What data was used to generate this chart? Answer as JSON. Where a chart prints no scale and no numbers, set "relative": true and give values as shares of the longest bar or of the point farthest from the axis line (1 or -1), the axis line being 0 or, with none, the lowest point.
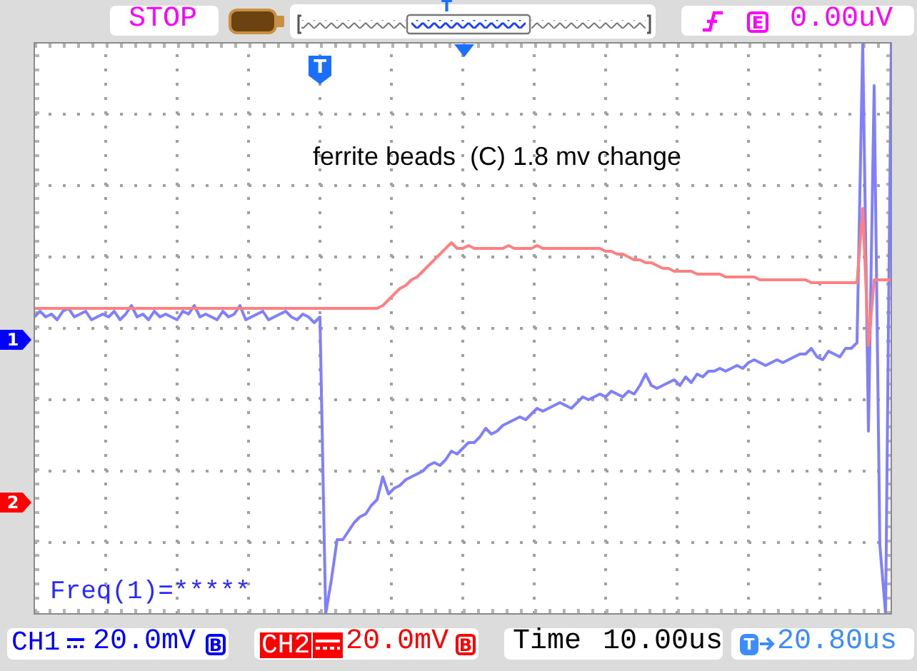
{
  "chart_data": {
    "type": "line",
    "title": "ferrite beads  (C) 1.8 mv change",
    "relative": true,
    "grid": true,
    "categories": [
      null,
      null,
      null,
      null,
      null,
      null,
      null,
      null,
      null,
      null,
      null,
      null,
      null,
      null,
      null,
      null,
      null,
      null,
      null,
      null,
      null,
      null,
      null,
      null,
      null,
      null,
      null,
      null,
      null,
      null,
      null,
      null,
      null,
      null,
      null,
      null,
      null,
      null,
      null,
      null,
      null,
      null,
      null,
      null,
      null,
      null,
      null,
      null,
      null,
      null,
      null,
      null,
      null,
      null,
      null,
      null,
      null,
      null,
      null,
      null,
      null,
      null,
      null,
      null,
      null,
      null,
      null,
      null,
      null,
      null,
      null,
      null,
      null,
      null,
      null,
      null,
      null,
      null,
      null,
      null,
      null,
      null,
      null,
      null,
      null,
      null,
      null,
      null,
      null,
      null,
      null,
      null,
      null,
      null,
      null,
      null,
      null,
      null,
      null,
      null,
      null,
      null,
      null,
      null,
      null,
      null,
      null,
      null,
      null,
      null,
      null,
      null,
      null,
      null,
      null,
      null,
      null,
      null,
      null,
      null,
      null,
      null,
      null,
      null,
      null,
      null,
      null,
      null,
      null,
      null,
      null,
      null,
      null,
      null,
      null,
      null,
      null,
      null,
      null,
      null,
      null,
      null,
      null,
      null,
      null,
      null,
      null,
      null,
      null,
      null,
      null
    ],
    "series": [
      {
        "color": "#8080ff",
        "values": [
          0.52,
          0.53,
          0.52,
          0.525,
          0.515,
          0.53,
          0.535,
          0.52,
          0.525,
          0.53,
          0.515,
          0.52,
          0.525,
          0.52,
          0.53,
          0.515,
          0.525,
          0.54,
          0.52,
          0.525,
          0.515,
          0.53,
          0.52,
          0.525,
          0.52,
          0.515,
          0.53,
          0.525,
          0.54,
          0.52,
          0.525,
          0.52,
          0.515,
          0.53,
          0.52,
          0.525,
          0.54,
          0.515,
          0.52,
          0.525,
          0.53,
          0.515,
          0.52,
          0.525,
          0.53,
          0.52,
          0.515,
          0.525,
          0.52,
          0.51,
          0.52,
          0.0,
          0.06,
          0.13,
          0.13,
          0.145,
          0.16,
          0.17,
          0.175,
          0.19,
          0.2,
          0.24,
          0.21,
          0.22,
          0.225,
          0.235,
          0.24,
          0.245,
          0.25,
          0.26,
          0.265,
          0.26,
          0.27,
          0.285,
          0.28,
          0.29,
          0.3,
          0.3,
          0.31,
          0.325,
          0.315,
          0.32,
          0.33,
          0.335,
          0.34,
          0.345,
          0.34,
          0.35,
          0.36,
          0.355,
          0.36,
          0.365,
          0.37,
          0.365,
          0.36,
          0.37,
          0.38,
          0.375,
          0.38,
          0.385,
          0.38,
          0.39,
          0.385,
          0.38,
          0.39,
          0.385,
          0.4,
          0.42,
          0.4,
          0.395,
          0.4,
          0.405,
          0.41,
          0.4,
          0.415,
          0.405,
          0.42,
          0.415,
          0.425,
          0.425,
          0.43,
          0.425,
          0.43,
          0.435,
          0.43,
          0.44,
          0.445,
          0.44,
          0.435,
          0.44,
          0.445,
          0.44,
          0.445,
          0.45,
          0.455,
          0.455,
          0.465,
          0.45,
          0.445,
          0.46,
          0.455,
          0.45,
          0.465,
          0.465,
          0.475,
          1.0,
          0.32,
          0.925,
          0.12,
          0.0,
          1.0
        ]
      },
      {
        "color": "#ff8080",
        "values": [
          0.535,
          0.535,
          0.535,
          0.535,
          0.535,
          0.535,
          0.535,
          0.535,
          0.535,
          0.535,
          0.535,
          0.535,
          0.535,
          0.535,
          0.535,
          0.535,
          0.535,
          0.535,
          0.535,
          0.535,
          0.535,
          0.535,
          0.535,
          0.535,
          0.535,
          0.535,
          0.535,
          0.535,
          0.535,
          0.535,
          0.535,
          0.535,
          0.535,
          0.535,
          0.535,
          0.535,
          0.535,
          0.535,
          0.535,
          0.535,
          0.535,
          0.535,
          0.535,
          0.535,
          0.535,
          0.535,
          0.535,
          0.535,
          0.535,
          0.535,
          0.535,
          0.535,
          0.535,
          0.535,
          0.535,
          0.535,
          0.535,
          0.535,
          0.535,
          0.535,
          0.535,
          0.54,
          0.55,
          0.56,
          0.57,
          0.575,
          0.585,
          0.59,
          0.6,
          0.61,
          0.62,
          0.63,
          0.64,
          0.65,
          0.64,
          0.64,
          0.645,
          0.64,
          0.64,
          0.64,
          0.64,
          0.64,
          0.64,
          0.645,
          0.64,
          0.64,
          0.64,
          0.64,
          0.645,
          0.64,
          0.64,
          0.64,
          0.64,
          0.64,
          0.64,
          0.64,
          0.64,
          0.64,
          0.64,
          0.64,
          0.635,
          0.635,
          0.63,
          0.63,
          0.625,
          0.62,
          0.62,
          0.615,
          0.615,
          0.61,
          0.605,
          0.605,
          0.6,
          0.6,
          0.6,
          0.6,
          0.595,
          0.595,
          0.595,
          0.595,
          0.595,
          0.59,
          0.59,
          0.59,
          0.59,
          0.59,
          0.59,
          0.585,
          0.585,
          0.585,
          0.585,
          0.585,
          0.585,
          0.585,
          0.585,
          0.585,
          0.58,
          0.58,
          0.58,
          0.58,
          0.58,
          0.58,
          0.58,
          0.58,
          0.58,
          0.71,
          0.47,
          0.585,
          0.585,
          0.585,
          0.585
        ]
      }
    ],
    "annotations": [
      "STOP",
      "T",
      "E",
      "0.00uV",
      "T",
      "Freq(1)=*****",
      "CH1",
      "20.0mV",
      "B",
      "CH2",
      "20.0mV",
      "B",
      "Time",
      "10.00us",
      "T",
      "20.80us",
      "1",
      "2"
    ]
  }
}
